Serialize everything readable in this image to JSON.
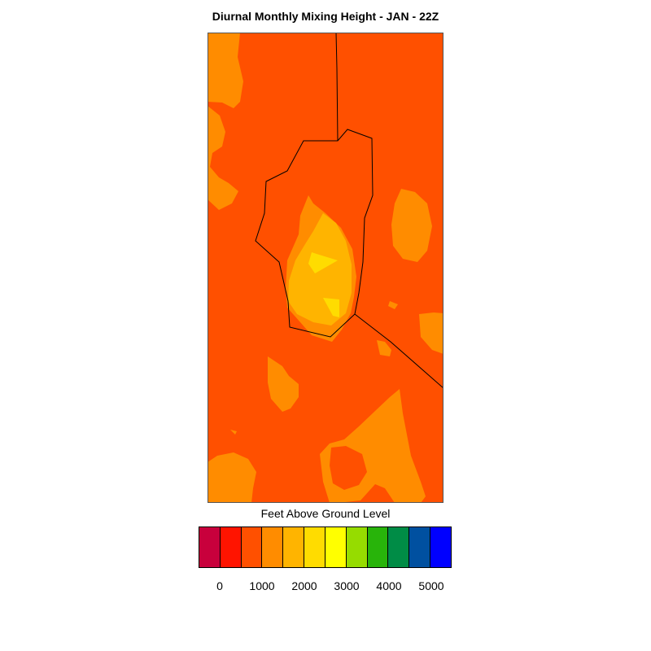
{
  "title": "Diurnal Monthly Mixing Height - JAN - 22Z",
  "colorbar": {
    "label": "Feet Above Ground Level",
    "colors": [
      "#c8003c",
      "#ff1400",
      "#ff5000",
      "#ff8c00",
      "#ffb400",
      "#ffdc00",
      "#ffff00",
      "#96dc00",
      "#28b40a",
      "#008c46",
      "#0050a0",
      "#0000ff"
    ],
    "ticks": [
      "0",
      "1000",
      "2000",
      "3000",
      "4000",
      "5000"
    ]
  },
  "map": {
    "background_color": "#ff5000",
    "level_colors": {
      "orange": "#ff8c00",
      "amber": "#ffb400",
      "yellow": "#ffdc00"
    }
  }
}
